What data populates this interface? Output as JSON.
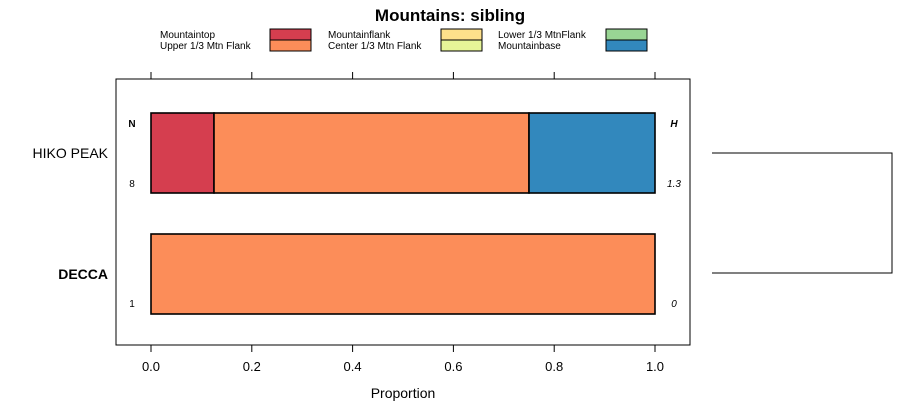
{
  "chart_data": {
    "type": "bar",
    "orientation": "horizontal",
    "stacked": true,
    "title": "Mountains: sibling",
    "xlabel": "Proportion",
    "ylabel": "",
    "xlim": [
      -0.07,
      1.07
    ],
    "x_ticks": [
      0.0,
      0.2,
      0.4,
      0.6,
      0.8,
      1.0
    ],
    "x_tick_labels": [
      "0.0",
      "0.2",
      "0.4",
      "0.6",
      "0.8",
      "1.0"
    ],
    "legend_position": "top",
    "legend": [
      {
        "label": "Mountaintop",
        "color": "#d53e4f"
      },
      {
        "label": "Upper 1/3 Mtn Flank",
        "color": "#fc8d59"
      },
      {
        "label": "Mountainflank",
        "color": "#fee08b"
      },
      {
        "label": "Center 1/3 Mtn Flank",
        "color": "#e6f598"
      },
      {
        "label": "Lower 1/3 MtnFlank",
        "color": "#99d594"
      },
      {
        "label": "Mountainbase",
        "color": "#3288bd"
      }
    ],
    "column_headers": {
      "left": "N",
      "right": "H"
    },
    "categories": [
      {
        "label": "HIKO PEAK",
        "bold": false,
        "n": "8",
        "h": "1.3",
        "segments": [
          {
            "series": "Mountaintop",
            "value": 0.125
          },
          {
            "series": "Upper 1/3 Mtn Flank",
            "value": 0.625
          },
          {
            "series": "Mountainbase",
            "value": 0.25
          }
        ]
      },
      {
        "label": "DECCA",
        "bold": true,
        "n": "1",
        "h": "0",
        "segments": [
          {
            "series": "Upper 1/3 Mtn Flank",
            "value": 1.0
          }
        ]
      }
    ],
    "dendrogram": "joins HIKO PEAK and DECCA"
  }
}
